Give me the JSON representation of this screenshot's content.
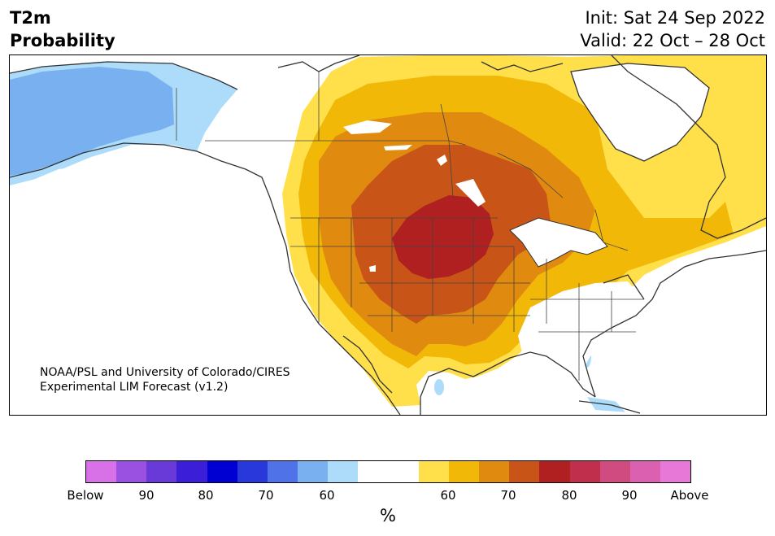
{
  "header": {
    "title_line1": "T2m",
    "title_line2": "Probability",
    "init_line": "Init: Sat 24 Sep 2022",
    "valid_line": "Valid: 22 Oct – 28 Oct"
  },
  "credit": {
    "line1": "NOAA/PSL and University of Colorado/CIRES",
    "line2": "Experimental LIM Forecast (v1.2)"
  },
  "colorbar": {
    "colors": [
      "#d870e8",
      "#9a50e0",
      "#6a3ad8",
      "#3a1ed8",
      "#0000d2",
      "#2838da",
      "#5072e8",
      "#78b0f0",
      "#addcfa",
      "#ffffff",
      "#ffffff",
      "#ffe04a",
      "#f2b808",
      "#e08a10",
      "#c85418",
      "#b02020",
      "#c0304c",
      "#d04c80",
      "#dc60b0",
      "#e878d8"
    ],
    "tick_labels": [
      "Below",
      "90",
      "80",
      "70",
      "60",
      "60",
      "70",
      "80",
      "90",
      "Above"
    ],
    "unit": "%"
  },
  "map": {
    "colors": {
      "ocean": "#ffffff",
      "land": "#ffffff",
      "prob_above_60": "#ffe04a",
      "prob_above_65": "#f2b808",
      "prob_above_70": "#e08a10",
      "prob_above_75": "#c85418",
      "prob_above_80": "#b02020",
      "prob_below_60": "#addcfa",
      "prob_below_65": "#78b0f0",
      "coastline": "#333333"
    }
  }
}
